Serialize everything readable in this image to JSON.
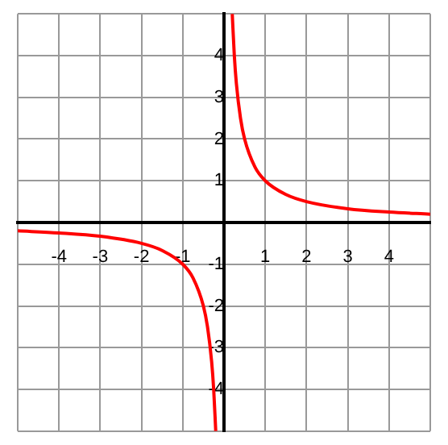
{
  "chart_data": {
    "type": "line",
    "x": [
      -5,
      -4,
      -3,
      -2,
      -1.5,
      -1,
      -0.75,
      -0.5,
      -0.4,
      -0.3,
      -0.25,
      -0.2,
      null,
      0.2,
      0.25,
      0.3,
      0.4,
      0.5,
      0.75,
      1,
      1.5,
      2,
      3,
      4,
      5
    ],
    "series": [
      {
        "color": "#ff0000",
        "values": [
          -0.2,
          -0.25,
          -0.33,
          -0.5,
          -0.67,
          -1,
          -1.33,
          -2,
          -2.5,
          -3.33,
          -4,
          -5,
          null,
          5,
          4,
          3.33,
          2.5,
          2,
          1.33,
          1,
          0.67,
          0.5,
          0.33,
          0.25,
          0.2
        ]
      }
    ],
    "xlim": [
      -5,
      5
    ],
    "ylim": [
      -5,
      5
    ],
    "xticks": [
      {
        "value": -5,
        "label": null
      },
      {
        "value": -4,
        "label": "-4"
      },
      {
        "value": -3,
        "label": "-3"
      },
      {
        "value": -2,
        "label": "-2"
      },
      {
        "value": -1,
        "label": "-1"
      },
      {
        "value": 0,
        "label": null
      },
      1,
      2,
      3,
      4,
      {
        "value": 5,
        "label": null
      }
    ],
    "yticks": [
      {
        "value": -5,
        "label": null
      },
      {
        "value": -4,
        "label": "-4"
      },
      {
        "value": -3,
        "label": "-3"
      },
      {
        "value": -2,
        "label": "-2"
      },
      {
        "value": -1,
        "label": "-1"
      },
      {
        "value": 0,
        "label": null
      },
      1,
      2,
      3,
      4,
      {
        "value": 5,
        "label": null
      }
    ],
    "grid": true,
    "legend": false,
    "marker": "none",
    "line_style": "solid"
  }
}
